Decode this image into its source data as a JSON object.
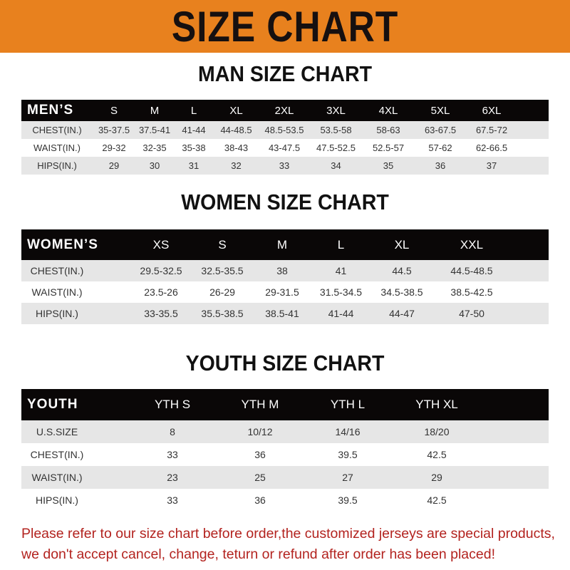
{
  "banner_title": "SIZE CHART",
  "men": {
    "title": "MAN SIZE CHART",
    "header": "MEN’S",
    "sizes": [
      "S",
      "M",
      "L",
      "XL",
      "2XL",
      "3XL",
      "4XL",
      "5XL",
      "6XL"
    ],
    "rows": [
      {
        "label": "CHEST(IN.)",
        "values": [
          "35-37.5",
          "37.5-41",
          "41-44",
          "44-48.5",
          "48.5-53.5",
          "53.5-58",
          "58-63",
          "63-67.5",
          "67.5-72"
        ]
      },
      {
        "label": "WAIST(IN.)",
        "values": [
          "29-32",
          "32-35",
          "35-38",
          "38-43",
          "43-47.5",
          "47.5-52.5",
          "52.5-57",
          "57-62",
          "62-66.5"
        ]
      },
      {
        "label": "HIPS(IN.)",
        "values": [
          "29",
          "30",
          "31",
          "32",
          "33",
          "34",
          "35",
          "36",
          "37"
        ]
      }
    ]
  },
  "women": {
    "title": "WOMEN SIZE CHART",
    "header": "WOMEN’S",
    "sizes": [
      "XS",
      "S",
      "M",
      "L",
      "XL",
      "XXL"
    ],
    "rows": [
      {
        "label": "CHEST(IN.)",
        "values": [
          "29.5-32.5",
          "32.5-35.5",
          "38",
          "41",
          "44.5",
          "44.5-48.5"
        ]
      },
      {
        "label": "WAIST(IN.)",
        "values": [
          "23.5-26",
          "26-29",
          "29-31.5",
          "31.5-34.5",
          "34.5-38.5",
          "38.5-42.5"
        ]
      },
      {
        "label": "HIPS(IN.)",
        "values": [
          "33-35.5",
          "35.5-38.5",
          "38.5-41",
          "41-44",
          "44-47",
          "47-50"
        ]
      }
    ]
  },
  "youth": {
    "title": "YOUTH SIZE CHART",
    "header": "YOUTH",
    "sizes": [
      "YTH S",
      "YTH M",
      "YTH L",
      "YTH XL"
    ],
    "rows": [
      {
        "label": "U.S.SIZE",
        "values": [
          "8",
          "10/12",
          "14/16",
          "18/20"
        ]
      },
      {
        "label": "CHEST(IN.)",
        "values": [
          "33",
          "36",
          "39.5",
          "42.5"
        ]
      },
      {
        "label": "WAIST(IN.)",
        "values": [
          "23",
          "25",
          "27",
          "29"
        ]
      },
      {
        "label": "HIPS(IN.)",
        "values": [
          "33",
          "36",
          "39.5",
          "42.5"
        ]
      }
    ]
  },
  "footer": {
    "line1": "Please refer to our size chart before order,the customized jerseys are special products,",
    "line2": "we don't accept cancel, change, teturn or refund after order has been placed!"
  },
  "colors": {
    "banner": "#e8811e",
    "header_row": "#0a0707",
    "stripe": "#e6e6e6",
    "notice": "#b3231f"
  }
}
